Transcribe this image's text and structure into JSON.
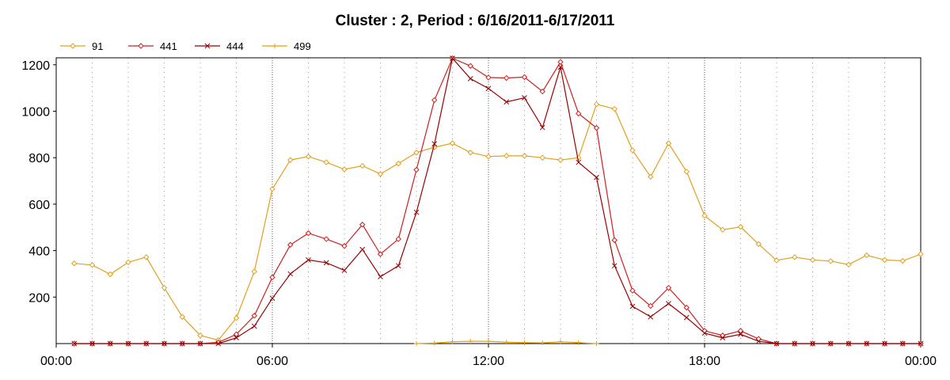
{
  "chart_data": {
    "type": "line",
    "title": "Cluster : 2, Period : 6/16/2011-6/17/2011",
    "xlabel": "",
    "ylabel": "",
    "x_tick_labels": [
      "00:00",
      "06:00",
      "12:00",
      "18:00",
      "00:00"
    ],
    "x_ticks_hours": [
      0,
      6,
      12,
      18,
      24
    ],
    "x_range_hours": [
      0,
      24
    ],
    "y_ticks": [
      200,
      400,
      600,
      800,
      1000,
      1200
    ],
    "ylim": [
      0,
      1230
    ],
    "grid": true,
    "legend_position": "top-left",
    "series": [
      {
        "name": "91",
        "color": "#e0a020",
        "marker": "diamond",
        "points": [
          [
            0.5,
            345
          ],
          [
            1.0,
            338
          ],
          [
            1.5,
            298
          ],
          [
            2.0,
            350
          ],
          [
            2.5,
            372
          ],
          [
            3.0,
            240
          ],
          [
            3.5,
            115
          ],
          [
            4.0,
            35
          ],
          [
            4.5,
            15
          ],
          [
            5.0,
            110
          ],
          [
            5.5,
            310
          ],
          [
            6.0,
            665
          ],
          [
            6.5,
            790
          ],
          [
            7.0,
            805
          ],
          [
            7.5,
            780
          ],
          [
            8.0,
            750
          ],
          [
            8.5,
            765
          ],
          [
            9.0,
            730
          ],
          [
            9.5,
            775
          ],
          [
            10.0,
            822
          ],
          [
            10.5,
            845
          ],
          [
            11.0,
            862
          ],
          [
            11.5,
            822
          ],
          [
            12.0,
            805
          ],
          [
            12.5,
            808
          ],
          [
            13.0,
            808
          ],
          [
            13.5,
            800
          ],
          [
            14.0,
            790
          ],
          [
            14.5,
            800
          ],
          [
            15.0,
            1030
          ],
          [
            15.5,
            1010
          ],
          [
            16.0,
            832
          ],
          [
            16.5,
            718
          ],
          [
            17.0,
            862
          ],
          [
            17.5,
            740
          ],
          [
            18.0,
            550
          ],
          [
            18.5,
            490
          ],
          [
            19.0,
            502
          ],
          [
            19.5,
            428
          ],
          [
            20.0,
            358
          ],
          [
            20.5,
            372
          ],
          [
            21.0,
            360
          ],
          [
            21.5,
            355
          ],
          [
            22.0,
            340
          ],
          [
            22.5,
            380
          ],
          [
            23.0,
            360
          ],
          [
            23.5,
            356
          ],
          [
            24.0,
            385
          ]
        ]
      },
      {
        "name": "441",
        "color": "#cc2020",
        "marker": "diamond",
        "points": [
          [
            0.5,
            0
          ],
          [
            1.0,
            0
          ],
          [
            1.5,
            0
          ],
          [
            2.0,
            0
          ],
          [
            2.5,
            0
          ],
          [
            3.0,
            0
          ],
          [
            3.5,
            0
          ],
          [
            4.0,
            0
          ],
          [
            4.5,
            5
          ],
          [
            5.0,
            40
          ],
          [
            5.5,
            120
          ],
          [
            6.0,
            285
          ],
          [
            6.5,
            425
          ],
          [
            7.0,
            475
          ],
          [
            7.5,
            450
          ],
          [
            8.0,
            420
          ],
          [
            8.5,
            512
          ],
          [
            9.0,
            385
          ],
          [
            9.5,
            450
          ],
          [
            10.0,
            748
          ],
          [
            10.5,
            1048
          ],
          [
            11.0,
            1228
          ],
          [
            11.5,
            1195
          ],
          [
            12.0,
            1145
          ],
          [
            12.5,
            1143
          ],
          [
            13.0,
            1147
          ],
          [
            13.5,
            1085
          ],
          [
            14.0,
            1212
          ],
          [
            14.5,
            990
          ],
          [
            15.0,
            928
          ],
          [
            15.5,
            445
          ],
          [
            16.0,
            228
          ],
          [
            16.5,
            162
          ],
          [
            17.0,
            240
          ],
          [
            17.5,
            155
          ],
          [
            18.0,
            55
          ],
          [
            18.5,
            35
          ],
          [
            19.0,
            55
          ],
          [
            19.5,
            20
          ],
          [
            20.0,
            0
          ],
          [
            20.5,
            0
          ],
          [
            21.0,
            0
          ],
          [
            21.5,
            0
          ],
          [
            22.0,
            0
          ],
          [
            22.5,
            0
          ],
          [
            23.0,
            0
          ],
          [
            23.5,
            0
          ],
          [
            24.0,
            0
          ]
        ]
      },
      {
        "name": "444",
        "color": "#990000",
        "marker": "x",
        "points": [
          [
            0.5,
            0
          ],
          [
            1.0,
            0
          ],
          [
            1.5,
            0
          ],
          [
            2.0,
            0
          ],
          [
            2.5,
            0
          ],
          [
            3.0,
            0
          ],
          [
            3.5,
            0
          ],
          [
            4.0,
            0
          ],
          [
            4.5,
            0
          ],
          [
            5.0,
            25
          ],
          [
            5.5,
            75
          ],
          [
            6.0,
            195
          ],
          [
            6.5,
            300
          ],
          [
            7.0,
            360
          ],
          [
            7.5,
            348
          ],
          [
            8.0,
            315
          ],
          [
            8.5,
            405
          ],
          [
            9.0,
            288
          ],
          [
            9.5,
            335
          ],
          [
            10.0,
            565
          ],
          [
            10.5,
            860
          ],
          [
            11.0,
            1228
          ],
          [
            11.5,
            1140
          ],
          [
            12.0,
            1098
          ],
          [
            12.5,
            1040
          ],
          [
            13.0,
            1058
          ],
          [
            13.5,
            930
          ],
          [
            14.0,
            1190
          ],
          [
            14.5,
            780
          ],
          [
            15.0,
            715
          ],
          [
            15.5,
            335
          ],
          [
            16.0,
            160
          ],
          [
            16.5,
            115
          ],
          [
            17.0,
            172
          ],
          [
            17.5,
            112
          ],
          [
            18.0,
            45
          ],
          [
            18.5,
            25
          ],
          [
            19.0,
            40
          ],
          [
            19.5,
            10
          ],
          [
            20.0,
            0
          ],
          [
            20.5,
            0
          ],
          [
            21.0,
            0
          ],
          [
            21.5,
            0
          ],
          [
            22.0,
            0
          ],
          [
            22.5,
            0
          ],
          [
            23.0,
            0
          ],
          [
            23.5,
            0
          ],
          [
            24.0,
            0
          ]
        ]
      },
      {
        "name": "499",
        "color": "#e8a000",
        "marker": "plus",
        "points": [
          [
            10.0,
            0
          ],
          [
            10.5,
            2
          ],
          [
            11.0,
            8
          ],
          [
            11.5,
            10
          ],
          [
            12.0,
            10
          ],
          [
            12.5,
            6
          ],
          [
            13.0,
            4
          ],
          [
            13.5,
            3
          ],
          [
            14.0,
            8
          ],
          [
            14.5,
            4
          ],
          [
            15.0,
            0
          ]
        ]
      }
    ]
  }
}
